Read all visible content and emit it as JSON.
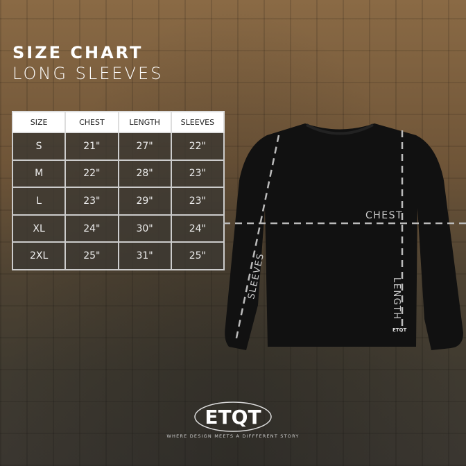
{
  "title": "SIZE CHART",
  "subtitle": "LONG SLEEVES",
  "table": {
    "headers": [
      "SIZE",
      "CHEST",
      "LENGTH",
      "SLEEVES"
    ],
    "rows": [
      [
        "S",
        "21\"",
        "27\"",
        "22\""
      ],
      [
        "M",
        "22\"",
        "28\"",
        "23\""
      ],
      [
        "L",
        "23\"",
        "29\"",
        "23\""
      ],
      [
        "XL",
        "24\"",
        "30\"",
        "24\""
      ],
      [
        "2XL",
        "25\"",
        "31\"",
        "25\""
      ]
    ]
  },
  "diagram": {
    "chest": "CHEST",
    "length": "LENGTH",
    "sleeves": "SLEEVES",
    "shirt_tag": "ETQT"
  },
  "brand": {
    "logo": "ETQT",
    "tagline": "WHERE DESIGN MEETS A DIFFFERENT STORY"
  }
}
